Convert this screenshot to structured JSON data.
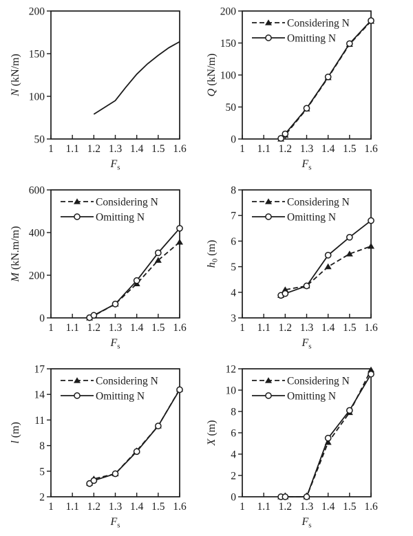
{
  "style": {
    "ink": "#1b1b1b",
    "background": "#ffffff",
    "dash_pattern": "7 4"
  },
  "legend_labels": {
    "considering": "Considering N",
    "omitting": "Omitting N"
  },
  "chart_data": [
    {
      "id": "N",
      "type": "line",
      "title": "",
      "ylabel": "N (kN/m)",
      "ylabel_parts": {
        "var": "N",
        "sub": "",
        "unit": "(kN/m)"
      },
      "xlabel": "Fs",
      "xlabel_parts": {
        "var": "F",
        "sub": "s"
      },
      "xlim": [
        1,
        1.6
      ],
      "ylim": [
        50,
        200
      ],
      "x_ticks": [
        1,
        1.1,
        1.2,
        1.3,
        1.4,
        1.5,
        1.6
      ],
      "y_ticks": [
        50,
        100,
        150,
        200
      ],
      "grid": false,
      "legend": false,
      "legend_position": "top-left",
      "series": [
        {
          "name": "N",
          "line": "solid",
          "marker": "none",
          "x": [
            1.2,
            1.25,
            1.3,
            1.35,
            1.4,
            1.45,
            1.5,
            1.55,
            1.6
          ],
          "y": [
            79,
            87,
            95,
            111,
            126,
            138,
            148,
            157,
            164
          ]
        }
      ]
    },
    {
      "id": "Q",
      "type": "line",
      "title": "",
      "ylabel": "Q (kN/m)",
      "ylabel_parts": {
        "var": "Q",
        "sub": "",
        "unit": "(kN/m)"
      },
      "xlabel": "Fs",
      "xlabel_parts": {
        "var": "F",
        "sub": "s"
      },
      "xlim": [
        1,
        1.6
      ],
      "ylim": [
        0,
        200
      ],
      "x_ticks": [
        1,
        1.1,
        1.2,
        1.3,
        1.4,
        1.5,
        1.6
      ],
      "y_ticks": [
        0,
        50,
        100,
        150,
        200
      ],
      "grid": false,
      "legend": true,
      "legend_position": "top-left",
      "series": [
        {
          "name": "Considering N",
          "line": "dashed",
          "marker": "triangle-filled",
          "x": [
            1.18,
            1.2,
            1.3,
            1.4,
            1.5,
            1.6
          ],
          "y": [
            0,
            6,
            47,
            96,
            148,
            184
          ]
        },
        {
          "name": "Omitting N",
          "line": "solid",
          "marker": "circle-open",
          "x": [
            1.18,
            1.2,
            1.3,
            1.4,
            1.5,
            1.6
          ],
          "y": [
            1,
            8,
            48,
            97,
            149,
            185
          ]
        }
      ]
    },
    {
      "id": "M",
      "type": "line",
      "title": "",
      "ylabel": "M (kN.m/m)",
      "ylabel_parts": {
        "var": "M",
        "sub": "",
        "unit": "(kN.m/m)"
      },
      "xlabel": "Fs",
      "xlabel_parts": {
        "var": "F",
        "sub": "s"
      },
      "xlim": [
        1,
        1.6
      ],
      "ylim": [
        0,
        600
      ],
      "x_ticks": [
        1,
        1.1,
        1.2,
        1.3,
        1.4,
        1.5,
        1.6
      ],
      "y_ticks": [
        0,
        200,
        400,
        600
      ],
      "grid": false,
      "legend": true,
      "legend_position": "top-left",
      "series": [
        {
          "name": "Considering N",
          "line": "dashed",
          "marker": "triangle-filled",
          "x": [
            1.18,
            1.2,
            1.3,
            1.4,
            1.5,
            1.6
          ],
          "y": [
            0,
            10,
            65,
            160,
            270,
            355
          ]
        },
        {
          "name": "Omitting N",
          "line": "solid",
          "marker": "circle-open",
          "x": [
            1.18,
            1.2,
            1.3,
            1.4,
            1.5,
            1.6
          ],
          "y": [
            1,
            12,
            65,
            175,
            305,
            420
          ]
        }
      ]
    },
    {
      "id": "h0",
      "type": "line",
      "title": "",
      "ylabel": "h0 (m)",
      "ylabel_parts": {
        "var": "h",
        "sub": "0",
        "unit": "(m)"
      },
      "xlabel": "Fs",
      "xlabel_parts": {
        "var": "F",
        "sub": "s"
      },
      "xlim": [
        1,
        1.6
      ],
      "ylim": [
        3,
        8
      ],
      "x_ticks": [
        1,
        1.1,
        1.2,
        1.3,
        1.4,
        1.5,
        1.6
      ],
      "y_ticks": [
        3,
        4,
        5,
        6,
        7,
        8
      ],
      "grid": false,
      "legend": true,
      "legend_position": "top-left",
      "series": [
        {
          "name": "Considering N",
          "line": "dashed",
          "marker": "triangle-filled",
          "x": [
            1.18,
            1.2,
            1.3,
            1.4,
            1.5,
            1.6
          ],
          "y": [
            3.88,
            4.1,
            4.25,
            5.0,
            5.5,
            5.8
          ]
        },
        {
          "name": "Omitting N",
          "line": "solid",
          "marker": "circle-open",
          "x": [
            1.18,
            1.2,
            1.3,
            1.4,
            1.5,
            1.6
          ],
          "y": [
            3.88,
            3.95,
            4.25,
            5.45,
            6.15,
            6.8
          ]
        }
      ]
    },
    {
      "id": "l",
      "type": "line",
      "title": "",
      "ylabel": "l (m)",
      "ylabel_parts": {
        "var": "l",
        "sub": "",
        "unit": "(m)"
      },
      "xlabel": "Fs",
      "xlabel_parts": {
        "var": "F",
        "sub": "s"
      },
      "xlim": [
        1,
        1.6
      ],
      "ylim": [
        2,
        17
      ],
      "x_ticks": [
        1,
        1.1,
        1.2,
        1.3,
        1.4,
        1.5,
        1.6
      ],
      "y_ticks": [
        2,
        5,
        8,
        11,
        14,
        17
      ],
      "grid": false,
      "legend": true,
      "legend_position": "top-left",
      "series": [
        {
          "name": "Considering N",
          "line": "dashed",
          "marker": "triangle-filled",
          "x": [
            1.18,
            1.2,
            1.3,
            1.4,
            1.5,
            1.6
          ],
          "y": [
            3.6,
            4.1,
            4.7,
            7.4,
            10.3,
            14.6
          ]
        },
        {
          "name": "Omitting N",
          "line": "solid",
          "marker": "circle-open",
          "x": [
            1.18,
            1.2,
            1.3,
            1.4,
            1.5,
            1.6
          ],
          "y": [
            3.55,
            3.9,
            4.7,
            7.3,
            10.3,
            14.55
          ]
        }
      ]
    },
    {
      "id": "X",
      "type": "line",
      "title": "",
      "ylabel": "X (m)",
      "ylabel_parts": {
        "var": "X",
        "sub": "",
        "unit": "(m)"
      },
      "xlabel": "Fs",
      "xlabel_parts": {
        "var": "F",
        "sub": "s"
      },
      "xlim": [
        1,
        1.6
      ],
      "ylim": [
        0,
        12
      ],
      "x_ticks": [
        1,
        1.1,
        1.2,
        1.3,
        1.4,
        1.5,
        1.6
      ],
      "y_ticks": [
        0,
        2,
        4,
        6,
        8,
        10,
        12
      ],
      "grid": false,
      "legend": true,
      "legend_position": "top-left",
      "series": [
        {
          "name": "Considering N",
          "line": "dashed",
          "marker": "triangle-filled",
          "x": [
            1.18,
            1.2,
            1.3,
            1.4,
            1.5,
            1.6
          ],
          "y": [
            0,
            0,
            0,
            5.1,
            7.9,
            11.9
          ]
        },
        {
          "name": "Omitting N",
          "line": "solid",
          "marker": "circle-open",
          "x": [
            1.18,
            1.2,
            1.3,
            1.4,
            1.5,
            1.6
          ],
          "y": [
            0,
            0,
            0,
            5.5,
            8.1,
            11.5
          ]
        }
      ]
    }
  ]
}
